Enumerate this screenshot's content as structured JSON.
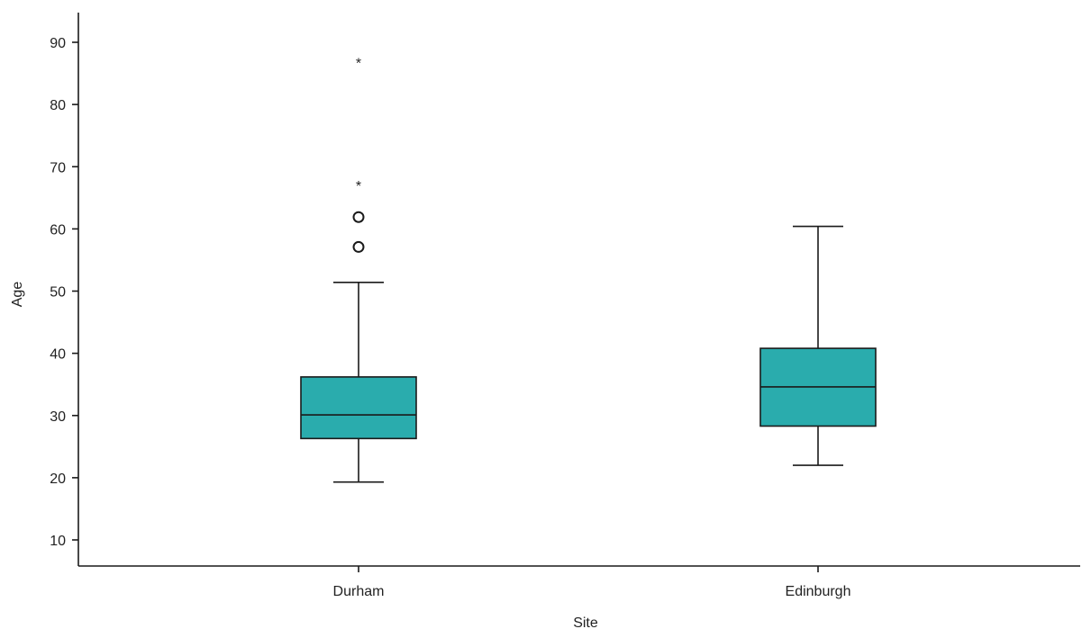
{
  "chart_data": {
    "type": "box",
    "xlabel": "Site",
    "ylabel": "Age",
    "ylim": [
      5,
      95
    ],
    "yticks": [
      10,
      20,
      30,
      40,
      50,
      60,
      70,
      80,
      90
    ],
    "categories": [
      "Durham",
      "Edinburgh"
    ],
    "boxes": [
      {
        "category": "Durham",
        "whisker_low": 19.3,
        "q1": 26.3,
        "median": 30.1,
        "q3": 36.2,
        "whisker_high": 51.4,
        "outliers": [
          {
            "value": 57.1,
            "marker": "circle"
          },
          {
            "value": 61.9,
            "marker": "circle"
          },
          {
            "value": 67.4,
            "marker": "star"
          },
          {
            "value": 87.2,
            "marker": "star"
          }
        ]
      },
      {
        "category": "Edinburgh",
        "whisker_low": 22.0,
        "q1": 28.3,
        "median": 34.6,
        "q3": 40.8,
        "whisker_high": 60.4,
        "outliers": []
      }
    ],
    "box_color": "#2aacad",
    "grid": false,
    "legend": "none"
  }
}
